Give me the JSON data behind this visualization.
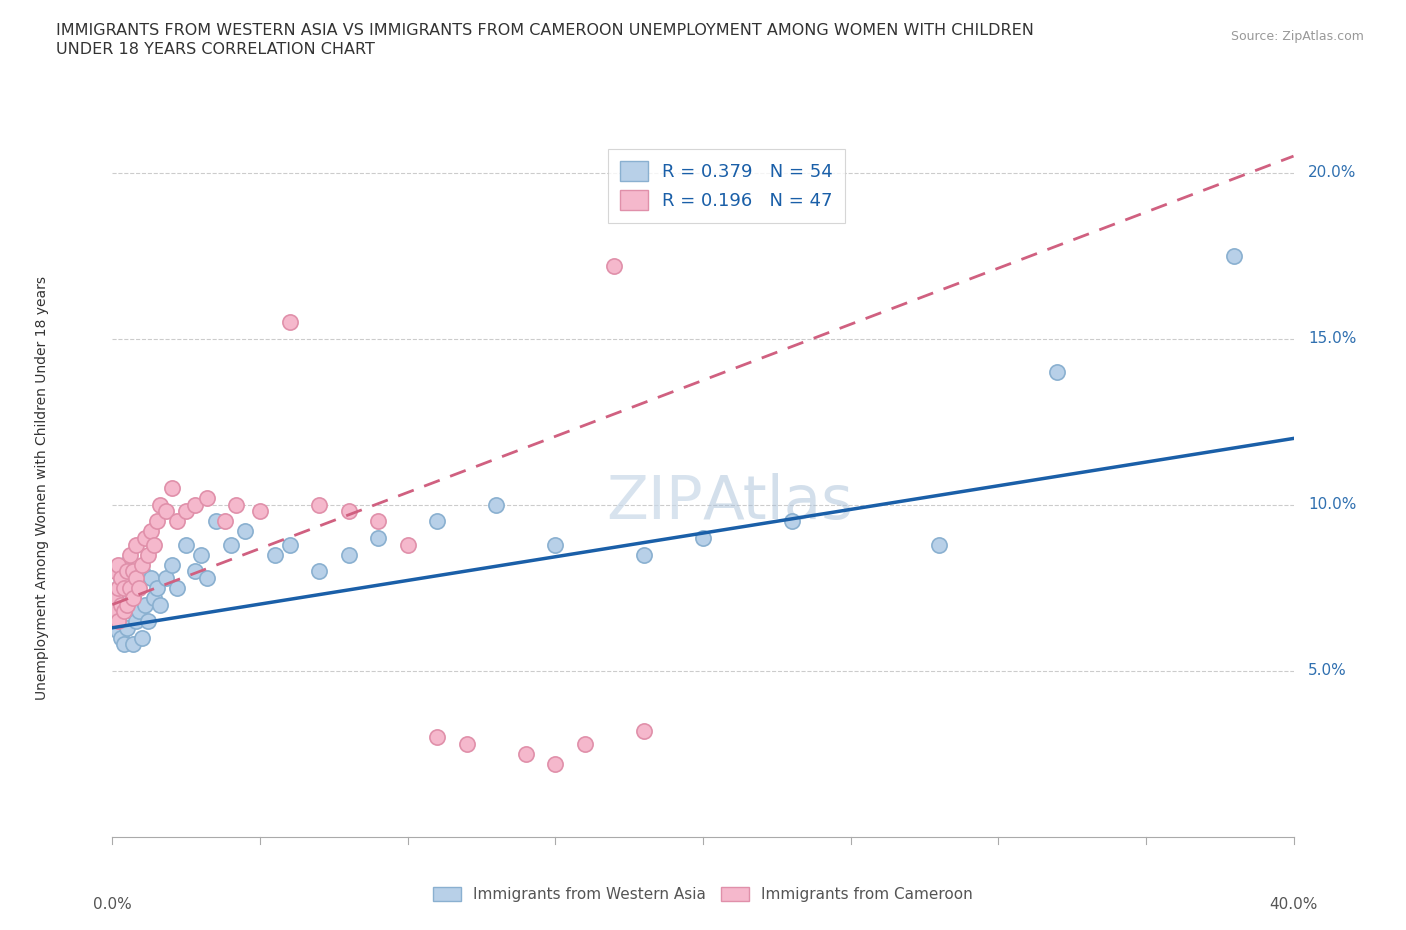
{
  "title_line1": "IMMIGRANTS FROM WESTERN ASIA VS IMMIGRANTS FROM CAMEROON UNEMPLOYMENT AMONG WOMEN WITH CHILDREN",
  "title_line2": "UNDER 18 YEARS CORRELATION CHART",
  "source_text": "Source: ZipAtlas.com",
  "ylabel": "Unemployment Among Women with Children Under 18 years",
  "watermark": "ZIPAtlas",
  "legend1_R": "0.379",
  "legend1_N": "54",
  "legend2_R": "0.196",
  "legend2_N": "47",
  "legend1_label": "Immigrants from Western Asia",
  "legend2_label": "Immigrants from Cameroon",
  "color_western_fill": "#b8d0e8",
  "color_western_edge": "#8ab0d0",
  "color_cameroon_fill": "#f5b8cc",
  "color_cameroon_edge": "#e090aa",
  "color_line_western": "#1a5fa8",
  "color_line_cameroon": "#d06080",
  "xlim": [
    0.0,
    0.4
  ],
  "ylim": [
    0.0,
    0.21
  ],
  "ytick_positions": [
    0.05,
    0.1,
    0.15,
    0.2
  ],
  "ytick_labels": [
    "5.0%",
    "10.0%",
    "15.0%",
    "20.0%"
  ],
  "xtick_left": "0.0%",
  "xtick_right": "40.0%",
  "grid_yticks": [
    0.05,
    0.1,
    0.15,
    0.2
  ],
  "western_asia_x": [
    0.001,
    0.001,
    0.001,
    0.002,
    0.002,
    0.002,
    0.002,
    0.003,
    0.003,
    0.003,
    0.004,
    0.004,
    0.004,
    0.005,
    0.005,
    0.006,
    0.006,
    0.007,
    0.007,
    0.008,
    0.008,
    0.009,
    0.01,
    0.01,
    0.011,
    0.012,
    0.013,
    0.014,
    0.015,
    0.016,
    0.018,
    0.02,
    0.022,
    0.025,
    0.028,
    0.03,
    0.032,
    0.035,
    0.04,
    0.045,
    0.055,
    0.06,
    0.07,
    0.08,
    0.09,
    0.11,
    0.13,
    0.15,
    0.18,
    0.2,
    0.23,
    0.28,
    0.32,
    0.38
  ],
  "western_asia_y": [
    0.07,
    0.072,
    0.068,
    0.075,
    0.065,
    0.08,
    0.062,
    0.07,
    0.078,
    0.06,
    0.082,
    0.068,
    0.058,
    0.075,
    0.063,
    0.08,
    0.07,
    0.072,
    0.058,
    0.075,
    0.065,
    0.068,
    0.08,
    0.06,
    0.07,
    0.065,
    0.078,
    0.072,
    0.075,
    0.07,
    0.078,
    0.082,
    0.075,
    0.088,
    0.08,
    0.085,
    0.078,
    0.095,
    0.088,
    0.092,
    0.085,
    0.088,
    0.08,
    0.085,
    0.09,
    0.095,
    0.1,
    0.088,
    0.085,
    0.09,
    0.095,
    0.088,
    0.14,
    0.175
  ],
  "cameroon_x": [
    0.001,
    0.001,
    0.001,
    0.002,
    0.002,
    0.002,
    0.003,
    0.003,
    0.004,
    0.004,
    0.005,
    0.005,
    0.006,
    0.006,
    0.007,
    0.007,
    0.008,
    0.008,
    0.009,
    0.01,
    0.011,
    0.012,
    0.013,
    0.014,
    0.015,
    0.016,
    0.018,
    0.02,
    0.022,
    0.025,
    0.028,
    0.032,
    0.038,
    0.042,
    0.05,
    0.06,
    0.07,
    0.08,
    0.09,
    0.1,
    0.11,
    0.12,
    0.14,
    0.15,
    0.16,
    0.17,
    0.18
  ],
  "cameroon_y": [
    0.072,
    0.068,
    0.08,
    0.075,
    0.065,
    0.082,
    0.07,
    0.078,
    0.075,
    0.068,
    0.08,
    0.07,
    0.085,
    0.075,
    0.08,
    0.072,
    0.088,
    0.078,
    0.075,
    0.082,
    0.09,
    0.085,
    0.092,
    0.088,
    0.095,
    0.1,
    0.098,
    0.105,
    0.095,
    0.098,
    0.1,
    0.102,
    0.095,
    0.1,
    0.098,
    0.155,
    0.1,
    0.098,
    0.095,
    0.088,
    0.03,
    0.028,
    0.025,
    0.022,
    0.028,
    0.172,
    0.032
  ],
  "trend_western_x0": 0.0,
  "trend_western_y0": 0.063,
  "trend_western_x1": 0.4,
  "trend_western_y1": 0.12,
  "trend_cameroon_x0": 0.0,
  "trend_cameroon_y0": 0.07,
  "trend_cameroon_x1": 0.4,
  "trend_cameroon_y1": 0.205
}
